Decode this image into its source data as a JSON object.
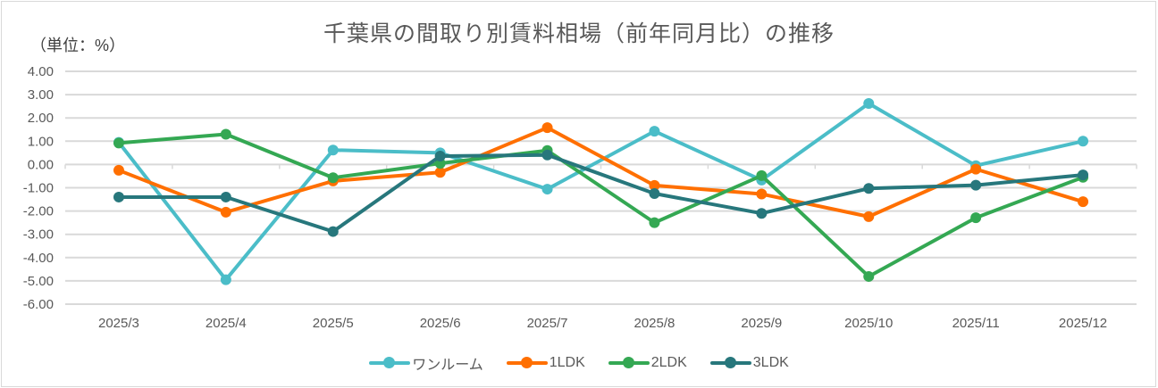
{
  "chart_data": {
    "type": "line",
    "title": "千葉県の間取り別賃料相場（前年同月比）の推移",
    "unit_label": "（単位：%）",
    "xlabel": "",
    "ylabel": "%",
    "ylim": [
      -6,
      4
    ],
    "y_ticks": [
      4,
      3,
      2,
      1,
      0,
      -1,
      -2,
      -3,
      -4,
      -5,
      -6
    ],
    "y_tick_labels": [
      "4.00",
      "3.00",
      "2.00",
      "1.00",
      "0.00",
      "-1.00",
      "-2.00",
      "-3.00",
      "-4.00",
      "-5.00",
      "-6.00"
    ],
    "grid": true,
    "legend_position": "bottom",
    "categories": [
      "2025/3",
      "2025/4",
      "2025/5",
      "2025/6",
      "2025/7",
      "2025/8",
      "2025/9",
      "2025/10",
      "2025/11",
      "2025/12"
    ],
    "series": [
      {
        "name": "ワンルーム",
        "color": "#4bbdc8",
        "values": [
          0.95,
          -4.95,
          0.62,
          0.5,
          -1.06,
          1.43,
          -0.67,
          2.62,
          -0.05,
          1.0
        ]
      },
      {
        "name": "1LDK",
        "color": "#ff6f00",
        "values": [
          -0.25,
          -2.05,
          -0.71,
          -0.34,
          1.58,
          -0.9,
          -1.27,
          -2.24,
          -0.2,
          -1.6
        ]
      },
      {
        "name": "2LDK",
        "color": "#34a853",
        "values": [
          0.92,
          1.3,
          -0.57,
          0.05,
          0.6,
          -2.5,
          -0.48,
          -4.81,
          -2.29,
          -0.55
        ]
      },
      {
        "name": "3LDK",
        "color": "#27777c",
        "values": [
          -1.4,
          -1.4,
          -2.88,
          0.36,
          0.41,
          -1.25,
          -2.1,
          -1.03,
          -0.89,
          -0.45
        ]
      }
    ]
  }
}
